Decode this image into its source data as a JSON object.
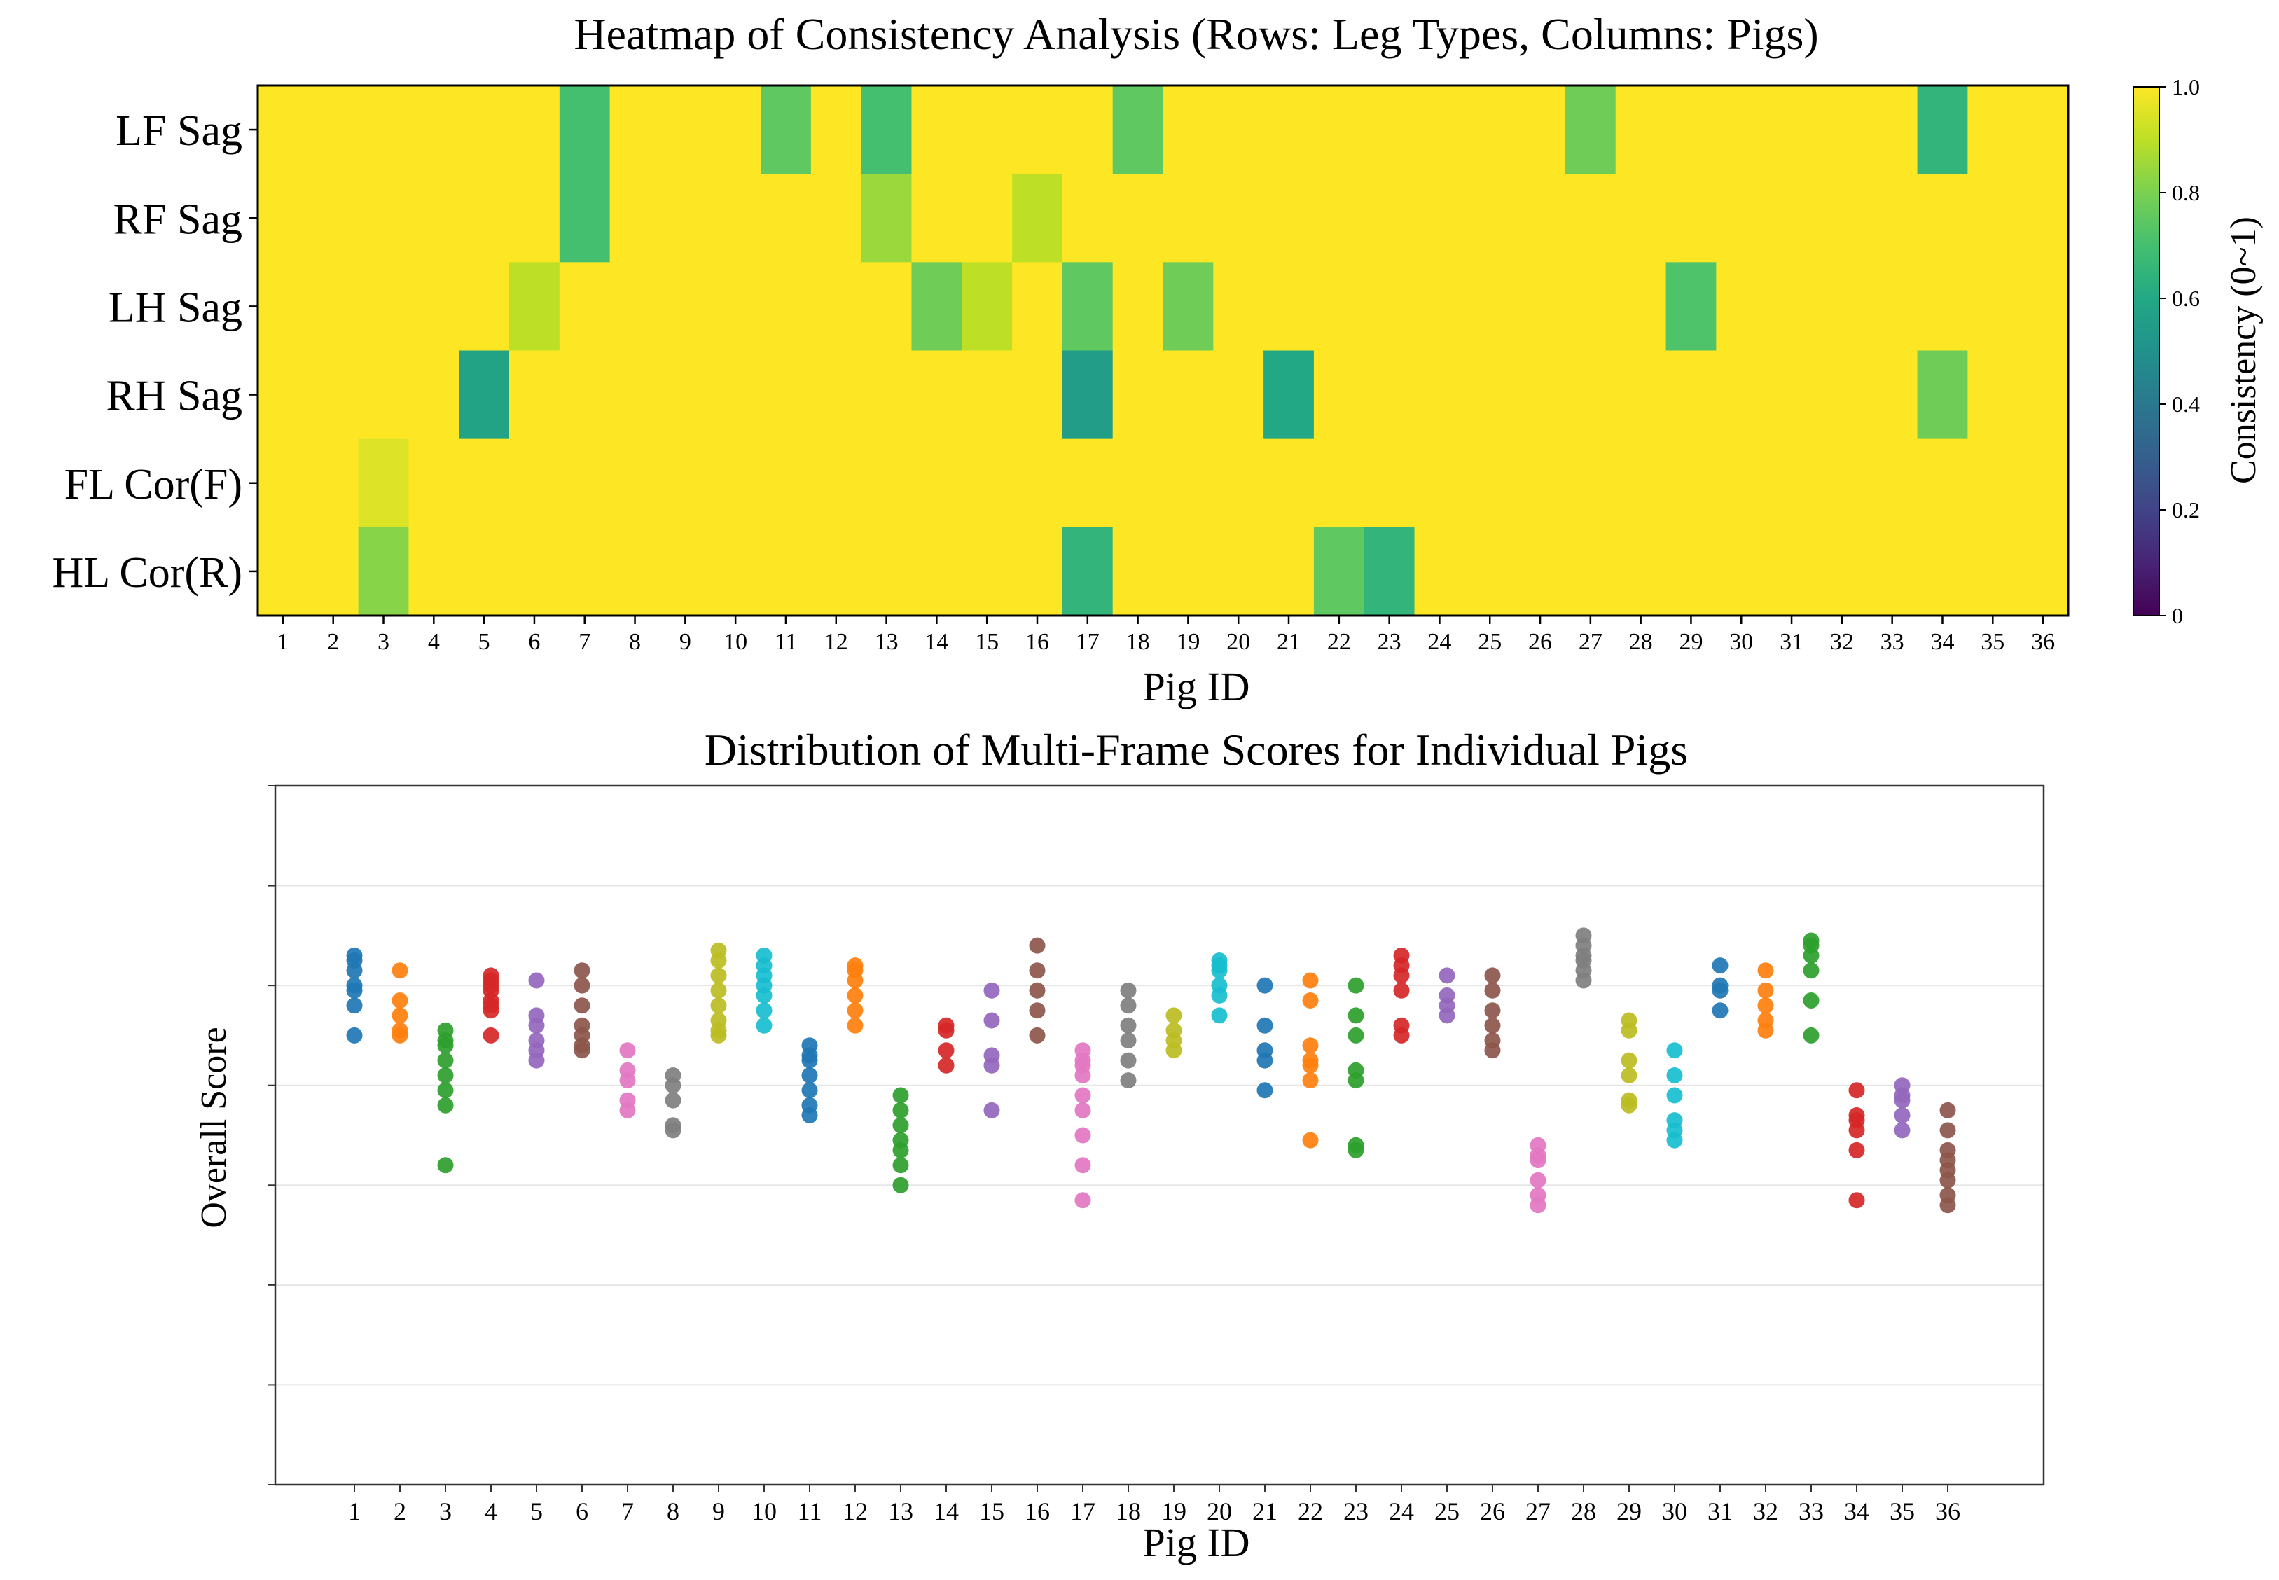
{
  "chart_data": [
    {
      "type": "heatmap",
      "title": "Heatmap of Consistency Analysis (Rows: Leg Types, Columns: Pigs)",
      "xlabel": "Pig ID",
      "ylabel": "",
      "rows": [
        "LF Sag",
        "RF Sag",
        "LH Sag",
        "RH Sag",
        "FL Cor(F)",
        "HL Cor(R)"
      ],
      "columns": [
        "1",
        "2",
        "3",
        "4",
        "5",
        "6",
        "7",
        "8",
        "9",
        "10",
        "11",
        "12",
        "13",
        "14",
        "15",
        "16",
        "17",
        "18",
        "19",
        "20",
        "21",
        "22",
        "23",
        "24",
        "25",
        "26",
        "27",
        "28",
        "29",
        "30",
        "31",
        "32",
        "33",
        "34",
        "35",
        "36"
      ],
      "values": [
        [
          1,
          1,
          1,
          1,
          1,
          1,
          0.7,
          1,
          1,
          1,
          0.75,
          1,
          0.7,
          1,
          1,
          1,
          1,
          0.75,
          1,
          1,
          1,
          1,
          1,
          1,
          1,
          1,
          0.78,
          1,
          1,
          1,
          1,
          1,
          1,
          0.65,
          1,
          1
        ],
        [
          1,
          1,
          1,
          1,
          1,
          1,
          0.7,
          1,
          1,
          1,
          1,
          1,
          0.85,
          1,
          1,
          0.9,
          1,
          1,
          1,
          1,
          1,
          1,
          1,
          1,
          1,
          1,
          1,
          1,
          1,
          1,
          1,
          1,
          1,
          1,
          1,
          1
        ],
        [
          1,
          1,
          1,
          1,
          1,
          0.9,
          1,
          1,
          1,
          1,
          1,
          1,
          1,
          0.78,
          0.9,
          1,
          0.75,
          1,
          0.78,
          1,
          1,
          1,
          1,
          1,
          1,
          1,
          1,
          1,
          0.72,
          1,
          1,
          1,
          1,
          1,
          1,
          1
        ],
        [
          1,
          1,
          1,
          1,
          0.58,
          1,
          1,
          1,
          1,
          1,
          1,
          1,
          1,
          1,
          1,
          1,
          0.55,
          1,
          1,
          1,
          0.6,
          1,
          1,
          1,
          1,
          1,
          1,
          1,
          1,
          1,
          1,
          1,
          1,
          0.78,
          1,
          1
        ],
        [
          1,
          1,
          0.95,
          1,
          1,
          1,
          1,
          1,
          1,
          1,
          1,
          1,
          1,
          1,
          1,
          1,
          1,
          1,
          1,
          1,
          1,
          1,
          1,
          1,
          1,
          1,
          1,
          1,
          1,
          1,
          1,
          1,
          1,
          1,
          1,
          1
        ],
        [
          1,
          1,
          0.82,
          1,
          1,
          1,
          1,
          1,
          1,
          1,
          1,
          1,
          1,
          1,
          1,
          1,
          0.65,
          1,
          1,
          1,
          1,
          0.75,
          0.65,
          1,
          1,
          1,
          1,
          1,
          1,
          1,
          1,
          1,
          1,
          1,
          1,
          1
        ]
      ],
      "colorbar": {
        "label": "Consistency (0~1)",
        "range": [
          0,
          1
        ],
        "ticks": [
          {
            "value": 0,
            "label": "0"
          },
          {
            "value": 0.2,
            "label": "0.2"
          },
          {
            "value": 0.4,
            "label": "0.4"
          },
          {
            "value": 0.6,
            "label": "0.6"
          },
          {
            "value": 0.8,
            "label": "0.8"
          },
          {
            "value": 1,
            "label": "1.0"
          }
        ],
        "colormap": "viridis"
      }
    },
    {
      "type": "scatter",
      "title": "Distribution of Multi-Frame Scores for Individual Pigs",
      "xlabel": "Pig ID",
      "ylabel": "Overall Score",
      "categories": [
        "1",
        "2",
        "3",
        "4",
        "5",
        "6",
        "7",
        "8",
        "9",
        "10",
        "11",
        "12",
        "13",
        "14",
        "15",
        "16",
        "17",
        "18",
        "19",
        "20",
        "21",
        "22",
        "23",
        "24",
        "25",
        "26",
        "27",
        "28",
        "29",
        "30",
        "31",
        "32",
        "33",
        "34",
        "35",
        "36"
      ],
      "ylim": [
        0,
        7
      ],
      "grid": true,
      "y_tick_labels_shown": false,
      "palette": [
        "#1f77b4",
        "#ff7f0e",
        "#2ca02c",
        "#d62728",
        "#9467bd",
        "#8c564b",
        "#e377c2",
        "#7f7f7f",
        "#bcbd22",
        "#17becf"
      ],
      "series": [
        {
          "values": [
            5.3,
            5.15,
            5.0,
            4.8,
            4.95,
            4.5,
            5.25
          ]
        },
        {
          "values": [
            5.15,
            4.85,
            4.7,
            4.55,
            4.5
          ]
        },
        {
          "values": [
            4.55,
            4.4,
            4.25,
            4.1,
            3.95,
            3.8,
            4.45,
            3.2
          ]
        },
        {
          "values": [
            5.1,
            5.0,
            4.95,
            4.85,
            4.8,
            4.75,
            4.5,
            5.05
          ]
        },
        {
          "values": [
            5.05,
            4.7,
            4.6,
            4.45,
            4.35,
            4.25
          ]
        },
        {
          "values": [
            5.15,
            5.0,
            4.8,
            4.6,
            4.5,
            4.4,
            4.35
          ]
        },
        {
          "values": [
            4.35,
            4.15,
            4.05,
            3.85,
            3.75
          ]
        },
        {
          "values": [
            4.1,
            4.0,
            3.85,
            3.6,
            3.55
          ]
        },
        {
          "values": [
            5.35,
            5.25,
            5.1,
            4.95,
            4.8,
            4.65,
            4.55,
            4.5
          ]
        },
        {
          "values": [
            5.3,
            5.2,
            5.1,
            5.0,
            4.9,
            4.75,
            4.6
          ]
        },
        {
          "values": [
            4.4,
            4.25,
            4.1,
            3.95,
            3.8,
            3.7,
            4.3
          ]
        },
        {
          "values": [
            5.2,
            5.05,
            4.9,
            4.75,
            4.6,
            5.15
          ]
        },
        {
          "values": [
            3.9,
            3.75,
            3.6,
            3.35,
            3.2,
            3.0,
            3.45
          ]
        },
        {
          "values": [
            4.6,
            4.35,
            4.2,
            4.55
          ]
        },
        {
          "values": [
            4.95,
            4.65,
            4.3,
            4.2,
            3.75
          ]
        },
        {
          "values": [
            5.4,
            5.15,
            4.95,
            4.75,
            4.5
          ]
        },
        {
          "values": [
            4.35,
            4.2,
            4.1,
            3.9,
            3.75,
            3.5,
            3.2,
            2.85,
            4.25
          ]
        },
        {
          "values": [
            4.95,
            4.6,
            4.45,
            4.25,
            4.05,
            4.8
          ]
        },
        {
          "values": [
            4.7,
            4.55,
            4.45,
            4.35
          ]
        },
        {
          "values": [
            5.25,
            5.15,
            5.0,
            4.9,
            4.7,
            5.2
          ]
        },
        {
          "values": [
            5.0,
            4.6,
            4.35,
            4.25,
            3.95
          ]
        },
        {
          "values": [
            5.05,
            4.85,
            4.4,
            4.2,
            4.05,
            3.45,
            4.25
          ]
        },
        {
          "values": [
            5.0,
            4.7,
            4.5,
            4.15,
            4.05,
            3.4,
            3.35
          ]
        },
        {
          "values": [
            5.3,
            5.1,
            4.95,
            4.6,
            4.5,
            5.2
          ]
        },
        {
          "values": [
            5.1,
            4.9,
            4.8,
            4.7
          ]
        },
        {
          "values": [
            5.1,
            4.95,
            4.75,
            4.6,
            4.45,
            4.35
          ]
        },
        {
          "values": [
            3.4,
            3.25,
            3.05,
            2.9,
            2.8,
            3.3
          ]
        },
        {
          "values": [
            5.5,
            5.4,
            5.3,
            5.15,
            5.05,
            5.25
          ]
        },
        {
          "values": [
            4.65,
            4.55,
            4.25,
            4.1,
            3.8,
            3.85
          ]
        },
        {
          "values": [
            4.35,
            4.1,
            3.9,
            3.65,
            3.45,
            3.55
          ]
        },
        {
          "values": [
            5.2,
            5.0,
            4.75,
            4.95
          ]
        },
        {
          "values": [
            5.15,
            4.95,
            4.8,
            4.65,
            4.55
          ]
        },
        {
          "values": [
            5.45,
            5.3,
            5.15,
            4.85,
            4.5,
            5.4
          ]
        },
        {
          "values": [
            3.95,
            3.7,
            3.55,
            3.35,
            2.85,
            3.65
          ]
        },
        {
          "values": [
            4.0,
            3.85,
            3.7,
            3.55,
            3.9
          ]
        },
        {
          "values": [
            3.75,
            3.55,
            3.35,
            3.15,
            3.05,
            2.9,
            2.8,
            3.25
          ]
        }
      ]
    }
  ]
}
